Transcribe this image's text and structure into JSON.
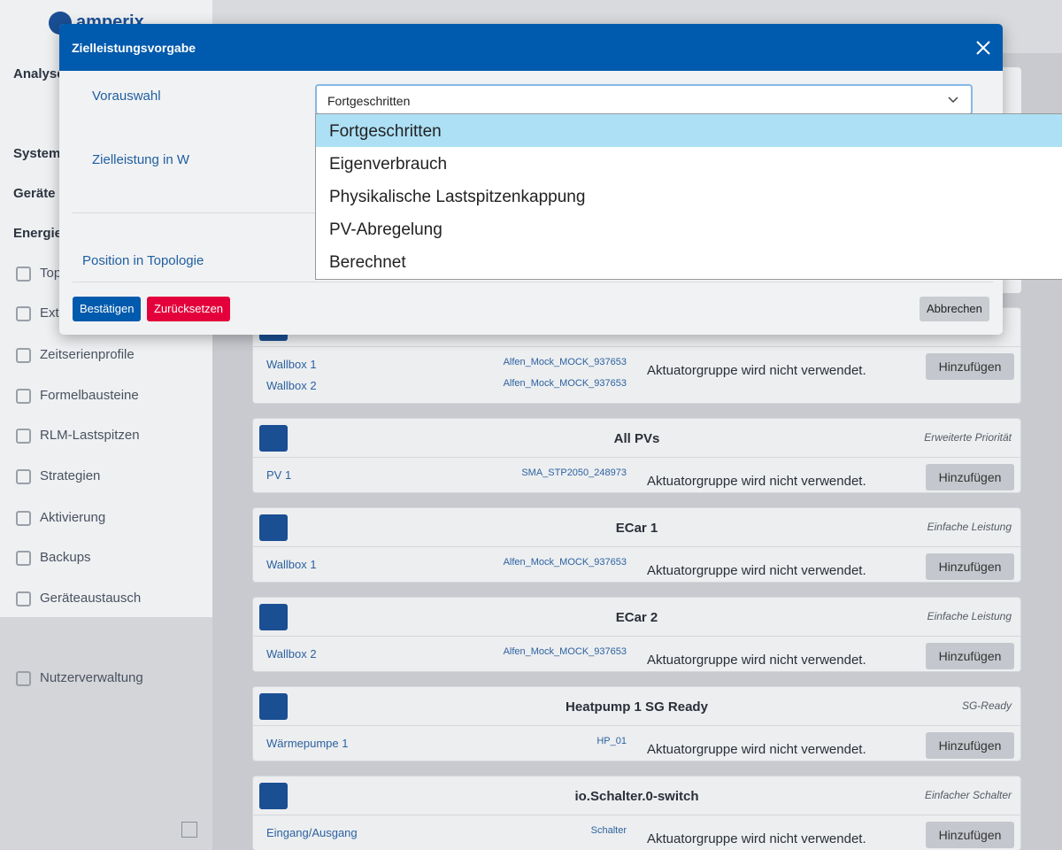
{
  "header": {
    "logo": "amperix"
  },
  "sidebar": {
    "sections": [
      "Analyse",
      "System",
      "Geräte",
      "Energie"
    ],
    "items": [
      "Top",
      "Ext.",
      "Zeitserienprofile",
      "Formelbausteine",
      "RLM-Lastspitzen",
      "Strategien",
      "Aktivierung",
      "Backups",
      "Geräteaustausch"
    ],
    "footer_item": "Nutzerverwaltung"
  },
  "groups": [
    {
      "rows": [
        {
          "name": "Wallbox 1",
          "device": "Alfen_Mock_MOCK_937653"
        },
        {
          "name": "Wallbox 2",
          "device": "Alfen_Mock_MOCK_937653"
        }
      ],
      "status": "Aktuatorgruppe wird nicht verwendet.",
      "button": "Hinzufügen"
    },
    {
      "title": "All PVs",
      "mode": "Erweiterte Priorität",
      "rows": [
        {
          "name": "PV 1",
          "device": "SMA_STP2050_248973"
        }
      ],
      "status": "Aktuatorgruppe wird nicht verwendet.",
      "button": "Hinzufügen"
    },
    {
      "title": "ECar 1",
      "mode": "Einfache Leistung",
      "rows": [
        {
          "name": "Wallbox 1",
          "device": "Alfen_Mock_MOCK_937653"
        }
      ],
      "status": "Aktuatorgruppe wird nicht verwendet.",
      "button": "Hinzufügen"
    },
    {
      "title": "ECar 2",
      "mode": "Einfache Leistung",
      "rows": [
        {
          "name": "Wallbox 2",
          "device": "Alfen_Mock_MOCK_937653"
        }
      ],
      "status": "Aktuatorgruppe wird nicht verwendet.",
      "button": "Hinzufügen"
    },
    {
      "title": "Heatpump 1 SG Ready",
      "mode": "SG-Ready",
      "rows": [
        {
          "name": "Wärmepumpe 1",
          "device": "HP_01"
        }
      ],
      "status": "Aktuatorgruppe wird nicht verwendet.",
      "button": "Hinzufügen"
    },
    {
      "title": "io.Schalter.0-switch",
      "mode": "Einfacher Schalter",
      "rows": [
        {
          "name": "Eingang/Ausgang",
          "device": "Schalter"
        }
      ],
      "status": "Aktuatorgruppe wird nicht verwendet.",
      "button": "Hinzufügen"
    }
  ],
  "modal": {
    "title": "Zielleistungsvorgabe",
    "fields": [
      "Vorauswahl",
      "Zielleistung in W",
      "Position in Topologie"
    ],
    "select": {
      "value": "Fortgeschritten",
      "options": [
        "Fortgeschritten",
        "Eigenverbrauch",
        "Physikalische Lastspitzenkappung",
        "PV-Abregelung",
        "Berechnet"
      ]
    },
    "buttons": {
      "confirm": "Bestätigen",
      "reset": "Zurücksetzen",
      "cancel": "Abbrechen"
    }
  }
}
